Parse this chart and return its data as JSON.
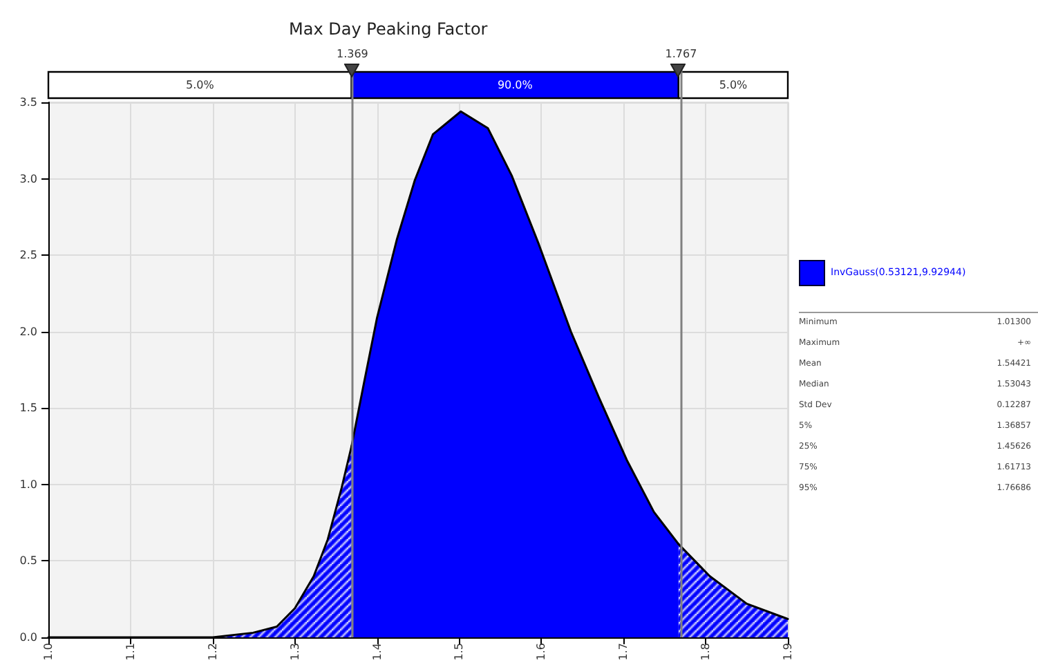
{
  "chart_data": {
    "type": "area",
    "title": "Max Day Peaking Factor",
    "series": [
      {
        "color": "#0000ff",
        "x": [
          1.0,
          1.1,
          1.2,
          1.249,
          1.278,
          1.3,
          1.323,
          1.34,
          1.357,
          1.369
        ],
        "values": [
          0,
          0,
          0,
          0.03,
          0.07,
          0.19,
          0.4,
          0.64,
          0.98,
          1.25
        ]
      },
      {
        "name": "InvGauss(0.53121,9.92944)",
        "color": "#0000ff",
        "x": [
          1.369,
          1.384,
          1.4,
          1.424,
          1.446,
          1.468,
          1.502,
          1.535,
          1.564,
          1.597,
          1.636,
          1.67,
          1.704,
          1.737,
          1.767
        ],
        "values": [
          1.25,
          1.66,
          2.09,
          2.6,
          2.99,
          3.29,
          3.44,
          3.33,
          3.02,
          2.57,
          2.0,
          1.57,
          1.16,
          0.82,
          0.61
        ]
      },
      {
        "color": "#0000ff",
        "x": [
          1.767,
          1.805,
          1.85,
          1.895,
          1.9
        ],
        "values": [
          0.61,
          0.4,
          0.22,
          0.13,
          0.12
        ]
      }
    ],
    "xlim": [
      1.0,
      1.9
    ],
    "xticks": [
      {
        "value": 1.0,
        "label": "1.0"
      },
      {
        "value": 1.1,
        "label": "1.1"
      },
      {
        "value": 1.2,
        "label": "1.2"
      },
      {
        "value": 1.3,
        "label": "1.3"
      },
      {
        "value": 1.4,
        "label": "1.4"
      },
      {
        "value": 1.5,
        "label": "1.5"
      },
      {
        "value": 1.6,
        "label": "1.6"
      },
      {
        "value": 1.7,
        "label": "1.7"
      },
      {
        "value": 1.8,
        "label": "1.8"
      },
      {
        "value": 1.9,
        "label": "1.9"
      }
    ],
    "ylim": [
      0,
      3.5
    ],
    "yticks": [
      {
        "value": 0,
        "label": "0.0"
      },
      {
        "value": 0.5,
        "label": "0.5"
      },
      {
        "value": 1,
        "label": "1.0"
      },
      {
        "value": 1.5,
        "label": "1.5"
      },
      {
        "value": 2,
        "label": "2.0"
      },
      {
        "value": 2.5,
        "label": "2.5"
      },
      {
        "value": 3,
        "label": "3.0"
      },
      {
        "value": 3.5,
        "label": "3.5"
      }
    ],
    "ref_lines": [
      {
        "axis": "x",
        "value": 1.369,
        "label": "1.369",
        "color": "#808080"
      },
      {
        "axis": "x",
        "value": 1.767,
        "label": "1.767",
        "color": "#808080"
      }
    ],
    "annotations": [
      "5.0%",
      "90.0%",
      "5.0%",
      "Minimum",
      "1.01300",
      "Maximum",
      "+∞",
      "Mean",
      "1.54421",
      "Median",
      "1.53043",
      "Std Dev",
      "0.12287",
      "5%",
      "1.36857",
      "25%",
      "1.45626",
      "75%",
      "1.61713",
      "95%",
      "1.76686"
    ],
    "grid": true,
    "legend": "right",
    "marker": "none",
    "line_style": "solid"
  }
}
